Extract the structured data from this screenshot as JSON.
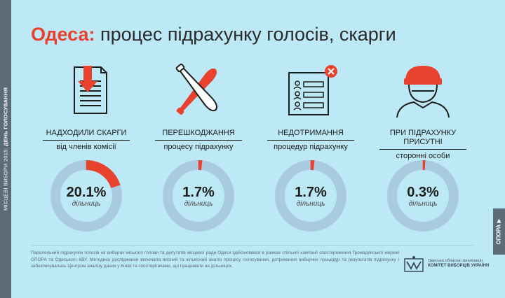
{
  "sidebar": {
    "election_label": "МІСЦЕВІ ВИБОРИ 2015:",
    "day_label": "ДЕНЬ ГОЛОСУВАННЯ"
  },
  "header": {
    "city": "Одеса:",
    "title": "процес підрахунку голосів, скарги"
  },
  "colors": {
    "accent": "#e8412d",
    "ring": "#a9cbe0",
    "background": "#bde8f6"
  },
  "chart_data": {
    "type": "pie",
    "unit": "%",
    "title": "Одеса: процес підрахунку голосів, скарги",
    "items": [
      {
        "label_line1": "НАДХОДИЛИ СКАРГИ",
        "label_line2": "від членів комісії",
        "value": 20.1,
        "value_text": "20.1%",
        "unit_label": "дільниць",
        "icon": "complaint-document-icon"
      },
      {
        "label_line1": "ПЕРЕШКОДЖАННЯ",
        "label_line2": "процесу підрахунку",
        "value": 1.7,
        "value_text": "1.7%",
        "unit_label": "дільниць",
        "icon": "crossed-bats-icon"
      },
      {
        "label_line1": "НЕДОТРИМАННЯ",
        "label_line2": "процедур підрахунку",
        "value": 1.7,
        "value_text": "1.7%",
        "unit_label": "дільниць",
        "icon": "rejected-list-icon"
      },
      {
        "label_line1": "ПРИ ПІДРАХУНКУ ПРИСУТНІ",
        "label_line2": "сторонні особи",
        "value": 0.3,
        "value_text": "0.3%",
        "unit_label": "дільниць",
        "icon": "stranger-person-icon"
      }
    ]
  },
  "footer": {
    "text": "Паралельний підрахунок голосів на виборах міського голови та депутатів місцевої ради Одеси здійснювався в рамках спільної кампанії спостереження Громадянської мережі ОПОРА та Одеського КВУ. Методика дослідження включала якісний та кількісний аналіз процесу голосування, дотримання виборчих процедур та результатів підрахунку і забезпечувалась Центром аналізу даних у Києві та спостерігачами, що працювали на дільницях.",
    "org_line1": "Одеська обласна організація",
    "org_line2": "КОМІТЕТ ВИБОРЦІВ УКРАЇНИ"
  },
  "opora_tab": "ОПОРА ▶"
}
